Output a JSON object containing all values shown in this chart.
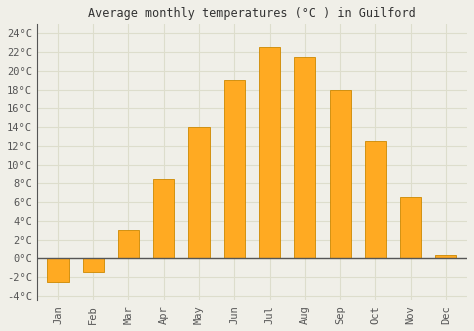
{
  "title": "Average monthly temperatures (°C ) in Guilford",
  "months": [
    "Jan",
    "Feb",
    "Mar",
    "Apr",
    "May",
    "Jun",
    "Jul",
    "Aug",
    "Sep",
    "Oct",
    "Nov",
    "Dec"
  ],
  "values": [
    -2.5,
    -1.5,
    3.0,
    8.5,
    14.0,
    19.0,
    22.5,
    21.5,
    18.0,
    12.5,
    6.5,
    0.3
  ],
  "bar_color": "#FFAA22",
  "bar_edge_color": "#CC8800",
  "background_color": "#f0efe8",
  "grid_color": "#ddddcc",
  "ylim": [
    -4.5,
    25
  ],
  "yticks": [
    -4,
    -2,
    0,
    2,
    4,
    6,
    8,
    10,
    12,
    14,
    16,
    18,
    20,
    22,
    24
  ],
  "title_fontsize": 8.5,
  "tick_fontsize": 7.5,
  "axis_label_color": "#555555"
}
